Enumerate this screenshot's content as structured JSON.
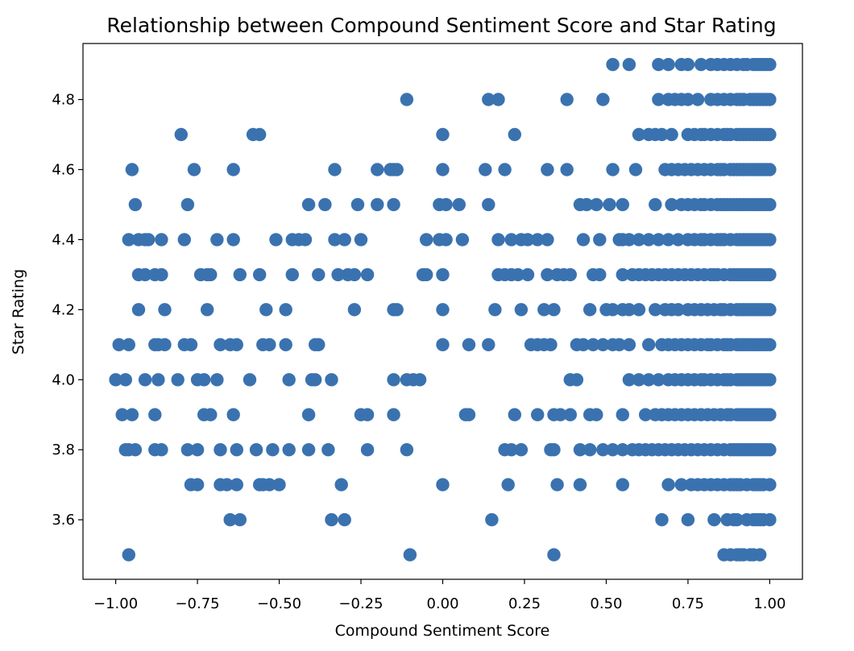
{
  "chart_data": {
    "type": "scatter",
    "title": "Relationship between Compound Sentiment Score and Star Rating",
    "xlabel": "Compound Sentiment Score",
    "ylabel": "Star Rating",
    "xlim": [
      -1.1,
      1.1
    ],
    "ylim": [
      3.43,
      4.96
    ],
    "xticks": [
      -1.0,
      -0.75,
      -0.5,
      -0.25,
      0.0,
      0.25,
      0.5,
      0.75,
      1.0
    ],
    "xtick_labels": [
      "−1.00",
      "−0.75",
      "−0.50",
      "−0.25",
      "0.00",
      "0.25",
      "0.50",
      "0.75",
      "1.00"
    ],
    "yticks": [
      3.6,
      3.8,
      4.0,
      4.2,
      4.4,
      4.6,
      4.8
    ],
    "ytick_labels": [
      "3.6",
      "3.8",
      "4.0",
      "4.2",
      "4.4",
      "4.6",
      "4.8"
    ],
    "grid": false,
    "marker_color": "#3a72b0",
    "series": [
      {
        "values_by_rating": [
          {
            "y": 4.9,
            "x": [
              0.52,
              0.57,
              0.66,
              0.69,
              0.73,
              0.75,
              0.79,
              0.82,
              0.84,
              0.86,
              0.88,
              0.9,
              0.92,
              0.93,
              0.95,
              0.96,
              0.97,
              0.98,
              0.99,
              1.0
            ]
          },
          {
            "y": 4.8,
            "x": [
              -0.11,
              0.14,
              0.17,
              0.38,
              0.49,
              0.66,
              0.69,
              0.71,
              0.73,
              0.75,
              0.78,
              0.82,
              0.84,
              0.86,
              0.88,
              0.9,
              0.91,
              0.92,
              0.94,
              0.95,
              0.96,
              0.97,
              0.98,
              0.99,
              1.0
            ]
          },
          {
            "y": 4.7,
            "x": [
              -0.8,
              -0.58,
              -0.56,
              0.0,
              0.22,
              0.6,
              0.63,
              0.65,
              0.67,
              0.7,
              0.75,
              0.77,
              0.79,
              0.8,
              0.82,
              0.84,
              0.86,
              0.87,
              0.88,
              0.9,
              0.91,
              0.92,
              0.93,
              0.94,
              0.95,
              0.96,
              0.97,
              0.98,
              0.99,
              1.0
            ]
          },
          {
            "y": 4.6,
            "x": [
              -0.95,
              -0.76,
              -0.64,
              -0.33,
              -0.2,
              -0.16,
              -0.15,
              -0.14,
              0.0,
              0.13,
              0.19,
              0.32,
              0.38,
              0.52,
              0.59,
              0.68,
              0.7,
              0.72,
              0.74,
              0.76,
              0.78,
              0.8,
              0.82,
              0.84,
              0.85,
              0.86,
              0.88,
              0.89,
              0.9,
              0.91,
              0.92,
              0.93,
              0.94,
              0.95,
              0.96,
              0.97,
              0.98,
              0.99,
              1.0
            ]
          },
          {
            "y": 4.5,
            "x": [
              -0.94,
              -0.78,
              -0.41,
              -0.36,
              -0.26,
              -0.2,
              -0.15,
              -0.01,
              0.01,
              0.05,
              0.14,
              0.42,
              0.44,
              0.47,
              0.51,
              0.55,
              0.65,
              0.7,
              0.73,
              0.75,
              0.77,
              0.79,
              0.8,
              0.82,
              0.84,
              0.85,
              0.86,
              0.87,
              0.88,
              0.89,
              0.9,
              0.91,
              0.92,
              0.93,
              0.94,
              0.95,
              0.96,
              0.97,
              0.98,
              0.99,
              1.0
            ]
          },
          {
            "y": 4.4,
            "x": [
              -0.96,
              -0.93,
              -0.91,
              -0.9,
              -0.86,
              -0.79,
              -0.69,
              -0.64,
              -0.51,
              -0.46,
              -0.44,
              -0.42,
              -0.33,
              -0.3,
              -0.25,
              -0.05,
              -0.01,
              0.01,
              0.06,
              0.17,
              0.21,
              0.24,
              0.26,
              0.29,
              0.32,
              0.43,
              0.48,
              0.54,
              0.55,
              0.57,
              0.6,
              0.63,
              0.66,
              0.69,
              0.72,
              0.75,
              0.77,
              0.79,
              0.8,
              0.82,
              0.84,
              0.85,
              0.86,
              0.88,
              0.9,
              0.91,
              0.92,
              0.93,
              0.94,
              0.95,
              0.96,
              0.97,
              0.98,
              0.99,
              1.0
            ]
          },
          {
            "y": 4.3,
            "x": [
              -0.93,
              -0.91,
              -0.88,
              -0.86,
              -0.74,
              -0.72,
              -0.71,
              -0.62,
              -0.56,
              -0.46,
              -0.38,
              -0.32,
              -0.29,
              -0.27,
              -0.23,
              -0.06,
              -0.05,
              0.0,
              0.17,
              0.19,
              0.21,
              0.23,
              0.26,
              0.32,
              0.35,
              0.37,
              0.39,
              0.46,
              0.48,
              0.55,
              0.58,
              0.6,
              0.62,
              0.64,
              0.66,
              0.68,
              0.7,
              0.72,
              0.74,
              0.76,
              0.78,
              0.8,
              0.82,
              0.83,
              0.84,
              0.86,
              0.88,
              0.89,
              0.9,
              0.91,
              0.92,
              0.93,
              0.94,
              0.95,
              0.96,
              0.97,
              0.98,
              0.99,
              1.0
            ]
          },
          {
            "y": 4.2,
            "x": [
              -0.93,
              -0.85,
              -0.72,
              -0.54,
              -0.48,
              -0.27,
              -0.15,
              -0.14,
              0.0,
              0.16,
              0.24,
              0.31,
              0.34,
              0.45,
              0.5,
              0.52,
              0.55,
              0.57,
              0.6,
              0.65,
              0.68,
              0.7,
              0.72,
              0.75,
              0.77,
              0.79,
              0.81,
              0.83,
              0.85,
              0.86,
              0.88,
              0.9,
              0.91,
              0.92,
              0.93,
              0.94,
              0.95,
              0.96,
              0.97,
              0.98,
              0.99,
              1.0
            ]
          },
          {
            "y": 4.1,
            "x": [
              -0.99,
              -0.96,
              -0.88,
              -0.87,
              -0.85,
              -0.79,
              -0.77,
              -0.68,
              -0.65,
              -0.63,
              -0.55,
              -0.53,
              -0.48,
              -0.39,
              -0.38,
              0.0,
              0.08,
              0.14,
              0.27,
              0.29,
              0.31,
              0.33,
              0.41,
              0.43,
              0.46,
              0.49,
              0.52,
              0.54,
              0.57,
              0.63,
              0.67,
              0.69,
              0.71,
              0.73,
              0.75,
              0.77,
              0.79,
              0.81,
              0.82,
              0.84,
              0.86,
              0.87,
              0.88,
              0.9,
              0.91,
              0.92,
              0.93,
              0.94,
              0.95,
              0.96,
              0.97,
              0.98,
              0.99,
              1.0
            ]
          },
          {
            "y": 4.0,
            "x": [
              -1.0,
              -0.97,
              -0.91,
              -0.87,
              -0.81,
              -0.75,
              -0.73,
              -0.69,
              -0.59,
              -0.47,
              -0.4,
              -0.39,
              -0.34,
              -0.15,
              -0.11,
              -0.09,
              -0.07,
              0.39,
              0.41,
              0.57,
              0.6,
              0.63,
              0.66,
              0.69,
              0.71,
              0.73,
              0.75,
              0.77,
              0.79,
              0.8,
              0.82,
              0.84,
              0.86,
              0.87,
              0.88,
              0.9,
              0.91,
              0.92,
              0.93,
              0.94,
              0.95,
              0.96,
              0.97,
              0.98,
              0.99,
              1.0
            ]
          },
          {
            "y": 3.9,
            "x": [
              -0.98,
              -0.95,
              -0.88,
              -0.73,
              -0.71,
              -0.64,
              -0.41,
              -0.25,
              -0.23,
              -0.15,
              0.07,
              0.08,
              0.22,
              0.29,
              0.34,
              0.36,
              0.39,
              0.45,
              0.47,
              0.55,
              0.62,
              0.65,
              0.67,
              0.69,
              0.71,
              0.73,
              0.75,
              0.77,
              0.79,
              0.81,
              0.83,
              0.85,
              0.87,
              0.88,
              0.9,
              0.91,
              0.92,
              0.93,
              0.94,
              0.95,
              0.96,
              0.97,
              0.98,
              0.99,
              1.0
            ]
          },
          {
            "y": 3.8,
            "x": [
              -0.97,
              -0.96,
              -0.94,
              -0.88,
              -0.86,
              -0.78,
              -0.75,
              -0.68,
              -0.63,
              -0.57,
              -0.52,
              -0.47,
              -0.41,
              -0.35,
              -0.23,
              -0.11,
              0.19,
              0.21,
              0.24,
              0.33,
              0.34,
              0.42,
              0.45,
              0.49,
              0.52,
              0.55,
              0.58,
              0.6,
              0.62,
              0.64,
              0.66,
              0.68,
              0.7,
              0.72,
              0.74,
              0.76,
              0.78,
              0.8,
              0.82,
              0.84,
              0.86,
              0.88,
              0.89,
              0.9,
              0.91,
              0.92,
              0.93,
              0.94,
              0.95,
              0.96,
              0.97,
              0.98,
              0.99,
              1.0
            ]
          },
          {
            "y": 3.7,
            "x": [
              -0.77,
              -0.75,
              -0.68,
              -0.66,
              -0.63,
              -0.56,
              -0.55,
              -0.53,
              -0.5,
              -0.31,
              0.0,
              0.2,
              0.35,
              0.42,
              0.55,
              0.69,
              0.73,
              0.76,
              0.78,
              0.8,
              0.82,
              0.84,
              0.86,
              0.88,
              0.89,
              0.9,
              0.91,
              0.93,
              0.95,
              0.96,
              0.97,
              0.98,
              1.0
            ]
          },
          {
            "y": 3.6,
            "x": [
              -0.65,
              -0.62,
              -0.34,
              -0.3,
              0.15,
              0.67,
              0.75,
              0.83,
              0.87,
              0.89,
              0.9,
              0.93,
              0.95,
              0.96,
              0.97,
              0.98,
              1.0
            ]
          },
          {
            "y": 3.5,
            "x": [
              -0.96,
              -0.1,
              0.34,
              0.86,
              0.88,
              0.9,
              0.91,
              0.92,
              0.94,
              0.95,
              0.97
            ]
          }
        ]
      }
    ]
  }
}
